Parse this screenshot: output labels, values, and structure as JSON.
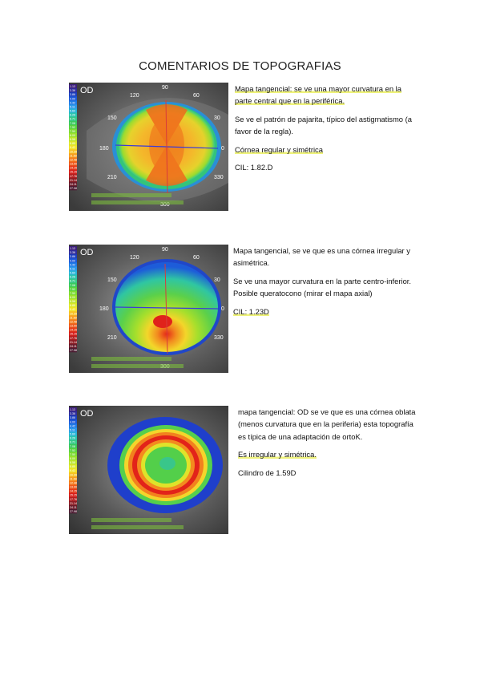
{
  "title": "COMENTARIOS DE TOPOGRAFIAS",
  "scale": [
    "1.13",
    "3.36",
    "3.86",
    "4.00",
    "4.42",
    "5.11",
    "5.60",
    "6.26",
    "6.71",
    "7.08",
    "7.52",
    "7.50",
    "8.00",
    "8.58",
    "8.85",
    "9.42",
    "10.39",
    "11.69",
    "12.48",
    "13.00",
    "14.15",
    "15.15",
    "17.76",
    "21.14",
    "24.11",
    "27.98"
  ],
  "scale_colors": [
    "#3b1d7c",
    "#2f2c9c",
    "#1c3fbf",
    "#1d59d8",
    "#1f79e6",
    "#2b99ea",
    "#27b4d8",
    "#2bc5b0",
    "#35c98a",
    "#39c95e",
    "#57d23f",
    "#7cdb31",
    "#9be12c",
    "#bde52a",
    "#dbe829",
    "#f1e327",
    "#f7c323",
    "#f79f1f",
    "#f47c1c",
    "#ef5a1a",
    "#e63a18",
    "#d81f1a",
    "#b51d1f",
    "#8f1c24",
    "#6c1b2a",
    "#4b1a30"
  ],
  "maps": [
    {
      "eye": "OD",
      "axes": {
        "top": "90",
        "tl": "120",
        "tr": "60",
        "ul": "150",
        "ur": "30",
        "left": "180",
        "right": "0",
        "ll": "210",
        "lr": "330",
        "bottom": "300"
      },
      "style": "astig",
      "comments": [
        {
          "text": "Mapa tangencial: se ve una mayor curvatura en la parte central que en la periférica."
        },
        {
          "text": "Se ve el patrón de pajarita, típico del astigmatismo (a favor de la regla)."
        },
        {
          "text": "Córnea regular y simétrica"
        },
        {
          "text": "CIL: 1.82.D"
        }
      ]
    },
    {
      "eye": "OD",
      "axes": {
        "top": "90",
        "tl": "120",
        "tr": "60",
        "ul": "150",
        "ur": "30",
        "left": "180",
        "right": "0",
        "ll": "210",
        "lr": "330",
        "bottom": "300"
      },
      "style": "kerato",
      "comments": [
        {
          "text": "Mapa tangencial, se ve que es una córnea irregular y asimétrica."
        },
        {
          "text": "Se ve una mayor curvatura en la parte centro-inferior. Posible queratocono (mirar el mapa axial)"
        },
        {
          "text": "CIL: 1.23D"
        }
      ]
    },
    {
      "eye": "OD",
      "axes": {},
      "style": "ortho",
      "comments": [
        {
          "text": "mapa tangencial: OD se ve que es una córnea oblata (menos curvatura que en la periferia) esta topografía es típica de una adaptación de ortoK."
        },
        {
          "text": "Es irregular y simétrica."
        },
        {
          "text": "Cilindro de 1.59D"
        }
      ]
    }
  ]
}
